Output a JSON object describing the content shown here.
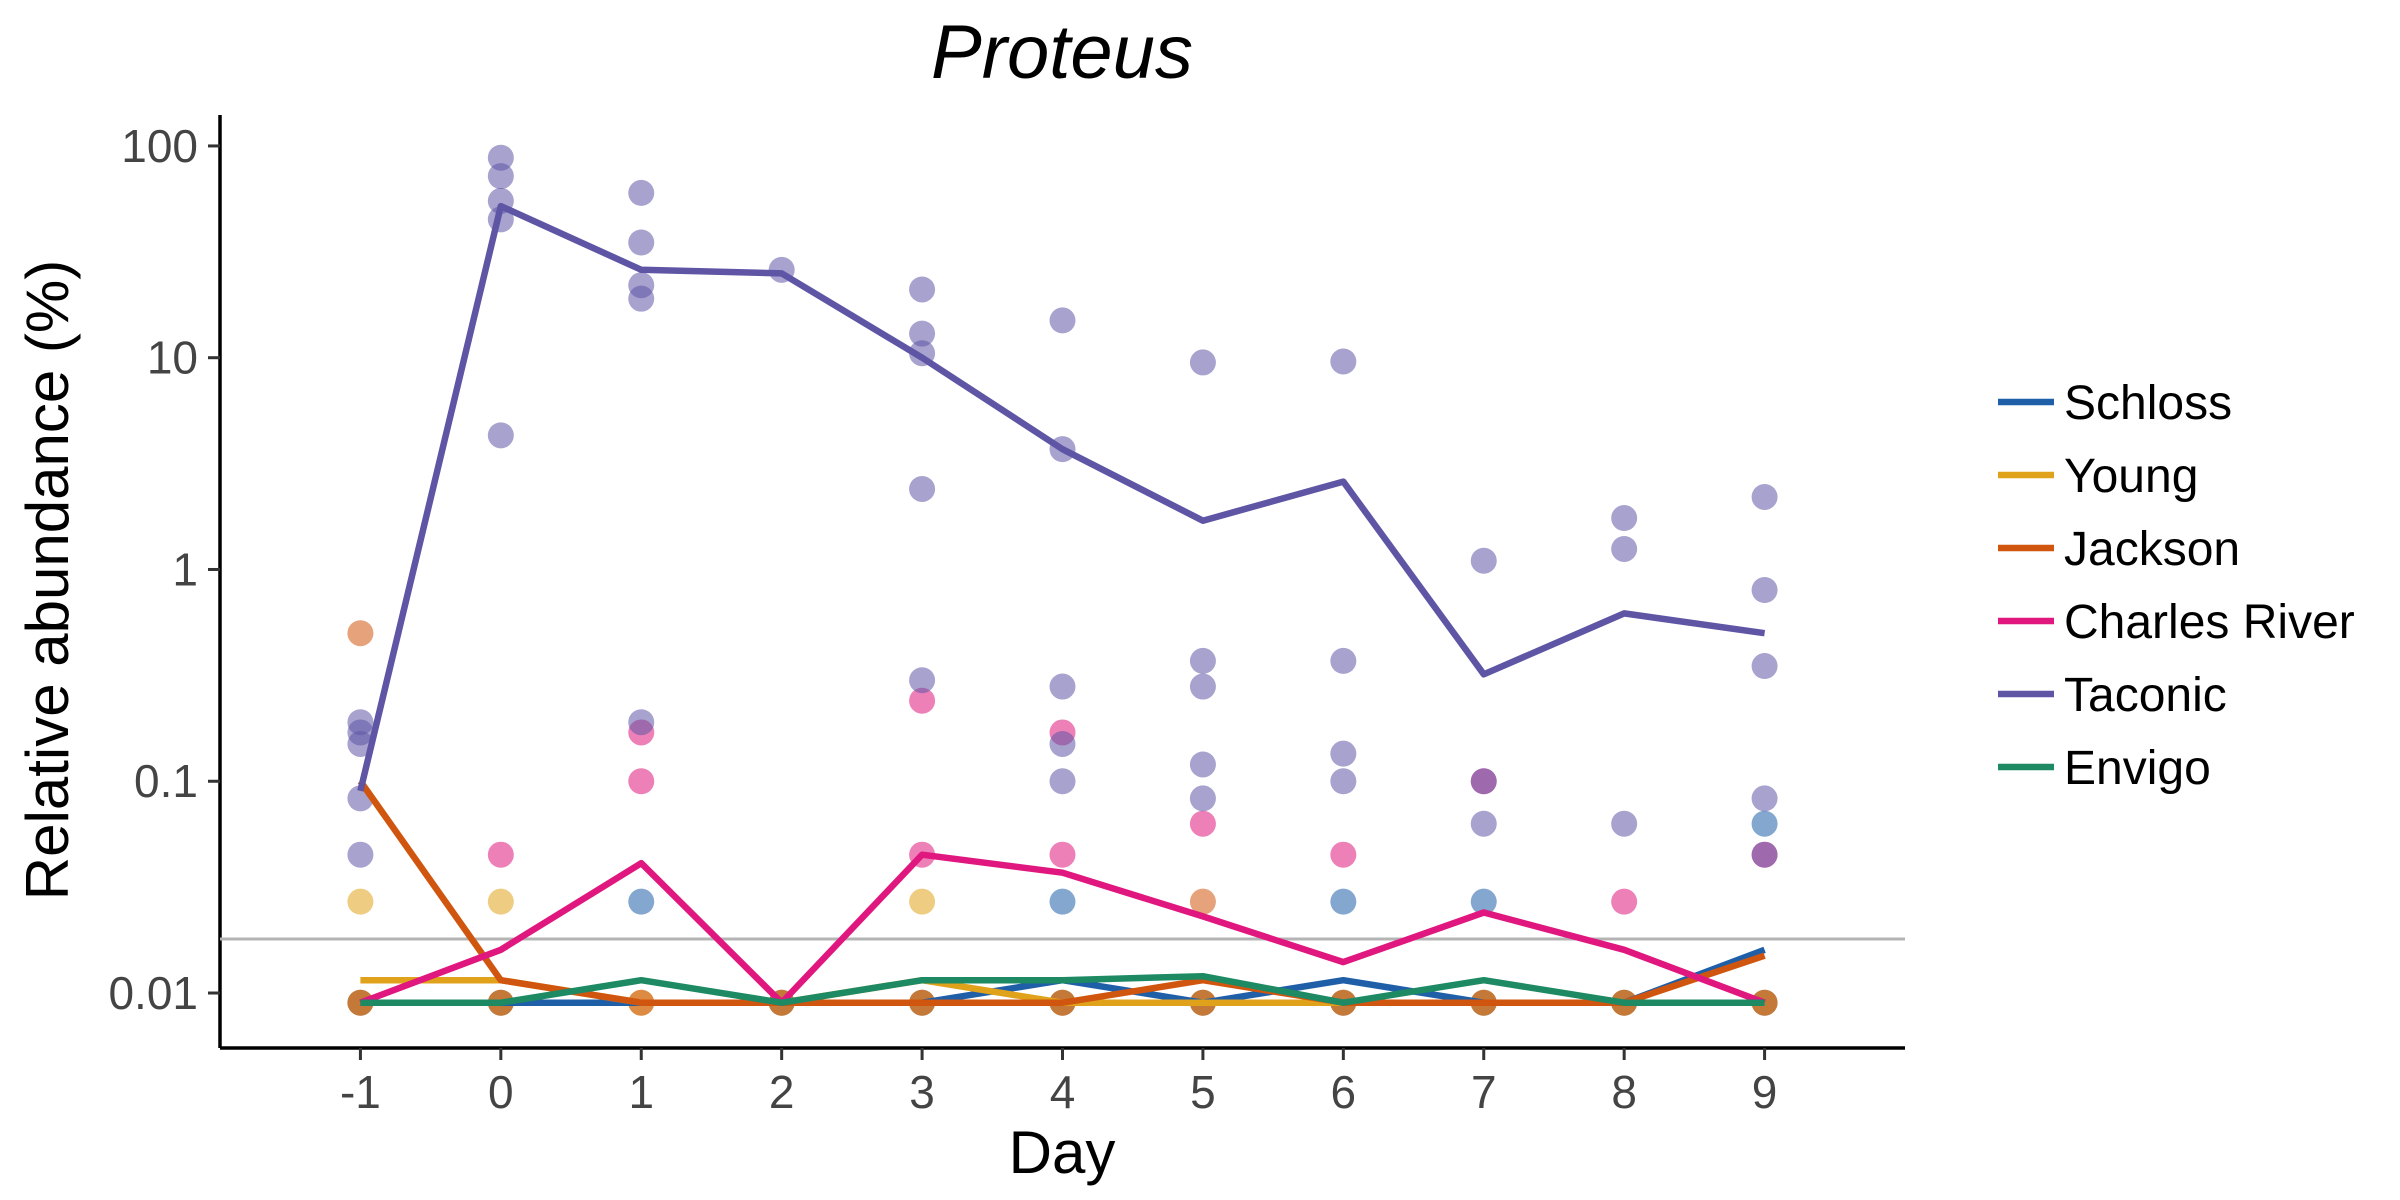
{
  "chart_data": {
    "type": "line",
    "title": "Proteus",
    "xlabel": "Day",
    "ylabel": "Relative abundance (%)",
    "x": [
      -1,
      0,
      1,
      2,
      3,
      4,
      5,
      6,
      7,
      8,
      9
    ],
    "x_tick_labels": [
      "-1",
      "0",
      "1",
      "2",
      "3",
      "4",
      "5",
      "6",
      "7",
      "8",
      "9"
    ],
    "xlim": [
      -2,
      10
    ],
    "y_scale": "log",
    "ylim": [
      0.0055,
      140
    ],
    "y_ticks": [
      0.01,
      0.1,
      1,
      10,
      100
    ],
    "y_tick_labels": [
      "0.01",
      "0.1",
      "1",
      "10",
      "100"
    ],
    "limit_of_detection": 0.018,
    "grid": false,
    "legend_position": "right",
    "series": [
      {
        "name": "Schloss",
        "color": "#1f5fa8",
        "values": [
          0.009,
          0.009,
          0.009,
          0.009,
          0.009,
          0.0115,
          0.009,
          0.0115,
          0.009,
          0.009,
          0.016
        ],
        "points": [
          [
            -1,
            0.009
          ],
          [
            0,
            0.009
          ],
          [
            1,
            0.027
          ],
          [
            2,
            0.009
          ],
          [
            3,
            0.009
          ],
          [
            4,
            0.027
          ],
          [
            4,
            0.009
          ],
          [
            5,
            0.009
          ],
          [
            6,
            0.027
          ],
          [
            6,
            0.009
          ],
          [
            7,
            0.027
          ],
          [
            7,
            0.009
          ],
          [
            8,
            0.009
          ],
          [
            9,
            0.063
          ],
          [
            9,
            0.009
          ]
        ]
      },
      {
        "name": "Young",
        "color": "#e0a21a",
        "values": [
          0.0115,
          0.0115,
          0.009,
          0.009,
          0.0115,
          0.009,
          0.009,
          0.009,
          0.009,
          0.009,
          0.009
        ],
        "points": [
          [
            -1,
            0.027
          ],
          [
            -1,
            0.009
          ],
          [
            0,
            0.027
          ],
          [
            0,
            0.009
          ],
          [
            1,
            0.009
          ],
          [
            2,
            0.009
          ],
          [
            3,
            0.027
          ],
          [
            3,
            0.009
          ],
          [
            4,
            0.009
          ],
          [
            5,
            0.009
          ],
          [
            6,
            0.009
          ],
          [
            7,
            0.009
          ],
          [
            8,
            0.009
          ],
          [
            9,
            0.009
          ]
        ]
      },
      {
        "name": "Jackson",
        "color": "#d0560f",
        "values": [
          0.1,
          0.0115,
          0.009,
          0.009,
          0.009,
          0.009,
          0.0115,
          0.009,
          0.009,
          0.009,
          0.015
        ],
        "points": [
          [
            -1,
            0.5
          ],
          [
            -1,
            0.009
          ],
          [
            0,
            0.009
          ],
          [
            1,
            0.009
          ],
          [
            2,
            0.009
          ],
          [
            3,
            0.009
          ],
          [
            4,
            0.009
          ],
          [
            5,
            0.027
          ],
          [
            5,
            0.009
          ],
          [
            6,
            0.009
          ],
          [
            7,
            0.009
          ],
          [
            8,
            0.009
          ],
          [
            9,
            0.009
          ]
        ]
      },
      {
        "name": "Charles River",
        "color": "#e0177e",
        "values": [
          0.009,
          0.016,
          0.041,
          0.009,
          0.045,
          0.037,
          0.023,
          0.014,
          0.024,
          0.016,
          0.009
        ],
        "points": [
          [
            0,
            0.045
          ],
          [
            1,
            0.17
          ],
          [
            1,
            0.1
          ],
          [
            3,
            0.24
          ],
          [
            3,
            0.045
          ],
          [
            4,
            0.17
          ],
          [
            4,
            0.045
          ],
          [
            5,
            0.063
          ],
          [
            6,
            0.045
          ],
          [
            7,
            0.1
          ],
          [
            8,
            0.027
          ],
          [
            9,
            0.045
          ]
        ]
      },
      {
        "name": "Taconic",
        "color": "#5e55a5",
        "values": [
          0.09,
          52,
          26,
          25,
          10,
          3.7,
          1.7,
          2.6,
          0.32,
          0.62,
          0.5
        ],
        "points": [
          [
            -1,
            0.19
          ],
          [
            -1,
            0.17
          ],
          [
            -1,
            0.15
          ],
          [
            -1,
            0.083
          ],
          [
            -1,
            0.045
          ],
          [
            0,
            88
          ],
          [
            0,
            72
          ],
          [
            0,
            55
          ],
          [
            0,
            45
          ],
          [
            0,
            4.3
          ],
          [
            1,
            60
          ],
          [
            1,
            35
          ],
          [
            1,
            22
          ],
          [
            1,
            19
          ],
          [
            1,
            0.19
          ],
          [
            2,
            26
          ],
          [
            3,
            21
          ],
          [
            3,
            13
          ],
          [
            3,
            10.5
          ],
          [
            3,
            2.4
          ],
          [
            3,
            0.3
          ],
          [
            4,
            15
          ],
          [
            4,
            3.7
          ],
          [
            4,
            0.28
          ],
          [
            4,
            0.15
          ],
          [
            4,
            0.1
          ],
          [
            5,
            9.5
          ],
          [
            5,
            0.37
          ],
          [
            5,
            0.28
          ],
          [
            5,
            0.12
          ],
          [
            5,
            0.083
          ],
          [
            6,
            9.6
          ],
          [
            6,
            0.37
          ],
          [
            6,
            0.135
          ],
          [
            6,
            0.1
          ],
          [
            7,
            1.1
          ],
          [
            7,
            0.1
          ],
          [
            7,
            0.063
          ],
          [
            8,
            1.75
          ],
          [
            8,
            1.25
          ],
          [
            8,
            0.063
          ],
          [
            9,
            2.2
          ],
          [
            9,
            0.8
          ],
          [
            9,
            0.35
          ],
          [
            9,
            0.083
          ],
          [
            9,
            0.045
          ]
        ]
      },
      {
        "name": "Envigo",
        "color": "#1d8a63",
        "values": [
          0.009,
          0.009,
          0.0115,
          0.009,
          0.0115,
          0.0115,
          0.012,
          0.009,
          0.0115,
          0.009,
          0.009
        ],
        "points": []
      }
    ]
  }
}
